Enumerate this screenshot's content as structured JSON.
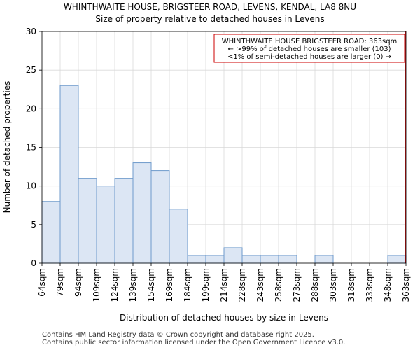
{
  "chart_data": {
    "type": "bar",
    "title": "WHINTHWAITE HOUSE, BRIGSTEER ROAD, LEVENS, KENDAL, LA8 8NU",
    "subtitle": "Size of property relative to detached houses in Levens",
    "xlabel": "Distribution of detached houses by size in Levens",
    "ylabel": "Number of detached properties",
    "x_tick_labels": [
      "64sqm",
      "79sqm",
      "94sqm",
      "109sqm",
      "124sqm",
      "139sqm",
      "154sqm",
      "169sqm",
      "184sqm",
      "199sqm",
      "214sqm",
      "228sqm",
      "243sqm",
      "258sqm",
      "273sqm",
      "288sqm",
      "303sqm",
      "318sqm",
      "333sqm",
      "348sqm",
      "363sqm"
    ],
    "values": [
      8,
      23,
      11,
      10,
      11,
      13,
      12,
      7,
      1,
      1,
      2,
      1,
      1,
      1,
      0,
      1,
      0,
      0,
      0,
      1
    ],
    "y_ticks": [
      0,
      5,
      10,
      15,
      20,
      25,
      30
    ],
    "ylim": [
      0,
      30
    ],
    "grid": true,
    "bar_color": "#dce6f4",
    "bar_edge_color": "#6e9acb",
    "marker": {
      "position_index": 20,
      "color": "#cc0000"
    },
    "annotation": {
      "lines": [
        "WHINTHWAITE HOUSE BRIGSTEER ROAD: 363sqm",
        "← >99% of detached houses are smaller (103)",
        "<1% of semi-detached houses are larger (0) →"
      ],
      "border_color": "#cc0000"
    }
  },
  "footer": {
    "line1": "Contains HM Land Registry data © Crown copyright and database right 2025.",
    "line2": "Contains public sector information licensed under the Open Government Licence v3.0."
  }
}
